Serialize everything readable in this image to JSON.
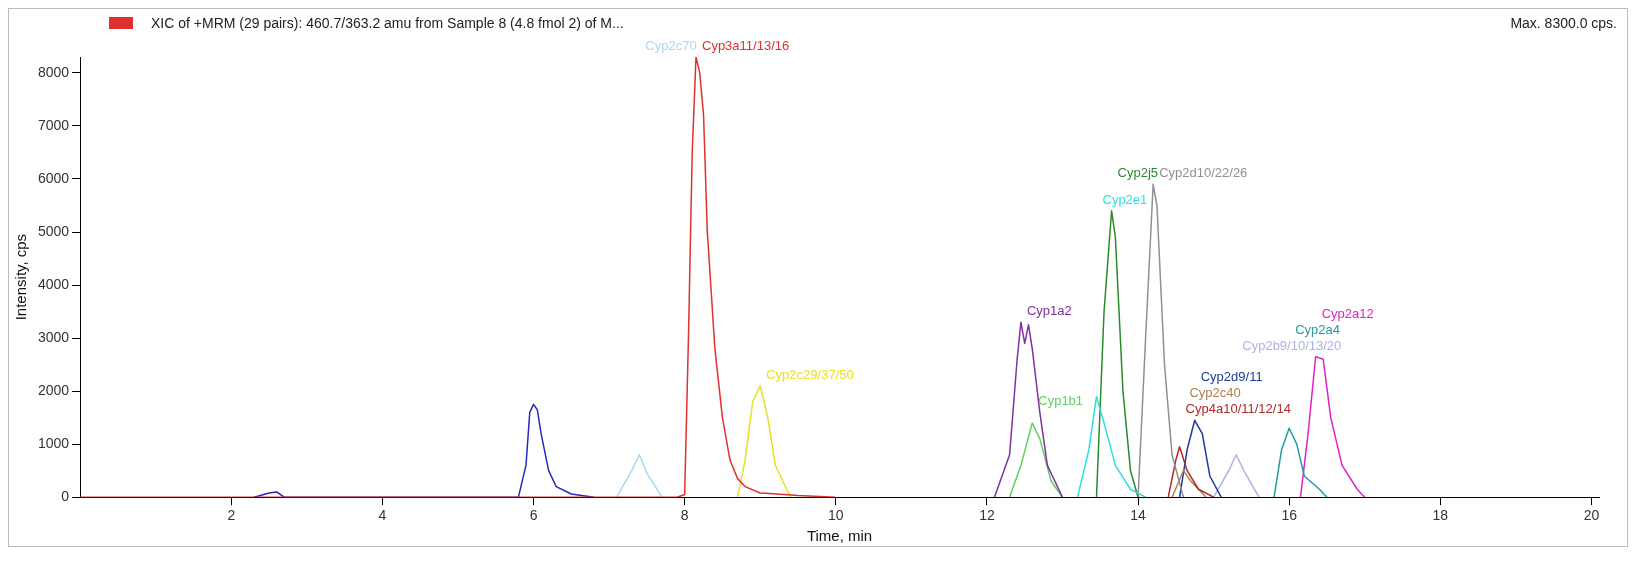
{
  "chart_data": {
    "type": "line",
    "title": "XIC of +MRM (29 pairs): 460.7/363.2 amu from Sample 8 (4.8 fmol 2) of M...",
    "annotations": [
      "Max. 8300.0 cps."
    ],
    "xlabel": "Time, min",
    "ylabel": "Intensity, cps",
    "xlim": [
      0,
      20.1
    ],
    "xticks": [
      2,
      4,
      6,
      8,
      10,
      12,
      14,
      16,
      18,
      20
    ],
    "ylim": [
      0,
      8300
    ],
    "yticks": [
      0,
      1000,
      2000,
      3000,
      4000,
      5000,
      6000,
      7000,
      8000
    ],
    "grid": false,
    "legend": false,
    "marker": "none",
    "line_style": "solid",
    "series": [
      {
        "name": "Cyp3a11/13/16",
        "color": "#e03030",
        "x": [
          0,
          7.9,
          8.0,
          8.05,
          8.1,
          8.15,
          8.2,
          8.25,
          8.3,
          8.4,
          8.5,
          8.6,
          8.7,
          8.8,
          9.0,
          9.5,
          10
        ],
        "values": [
          0,
          0,
          50,
          3000,
          6500,
          8300,
          8000,
          7200,
          5000,
          2800,
          1500,
          700,
          350,
          200,
          80,
          30,
          0
        ]
      },
      {
        "color": "#2828c0",
        "x": [
          2.3,
          2.5,
          2.6,
          2.7,
          5.8,
          5.9,
          5.95,
          6.0,
          6.05,
          6.1,
          6.2,
          6.3,
          6.5,
          6.8
        ],
        "values": [
          0,
          80,
          100,
          0,
          0,
          600,
          1600,
          1750,
          1650,
          1200,
          500,
          200,
          60,
          0
        ]
      },
      {
        "name": "Cyp2c70",
        "color": "#a8d8f0",
        "x": [
          7.1,
          7.3,
          7.4,
          7.5,
          7.7
        ],
        "values": [
          0,
          500,
          800,
          450,
          0
        ]
      },
      {
        "name": "Cyp2c29/37/50",
        "color": "#e8e020",
        "x": [
          8.7,
          8.8,
          8.9,
          9.0,
          9.1,
          9.2,
          9.4
        ],
        "values": [
          0,
          700,
          1800,
          2100,
          1500,
          600,
          0
        ]
      },
      {
        "name": "Cyp1a2",
        "color": "#8030a0",
        "x": [
          12.1,
          12.3,
          12.4,
          12.45,
          12.5,
          12.55,
          12.6,
          12.7,
          12.8,
          13.0
        ],
        "values": [
          0,
          800,
          2600,
          3300,
          2900,
          3250,
          2800,
          1600,
          600,
          0
        ]
      },
      {
        "name": "Cyp1b1",
        "color": "#60d060",
        "x": [
          12.3,
          12.45,
          12.6,
          12.7,
          12.85,
          13.0
        ],
        "values": [
          0,
          600,
          1400,
          1100,
          300,
          0
        ]
      },
      {
        "name": "Cyp2e1",
        "color": "#30e0e0",
        "x": [
          13.2,
          13.35,
          13.45,
          13.55,
          13.7,
          13.9,
          14.1
        ],
        "values": [
          0,
          900,
          1900,
          1400,
          600,
          150,
          0
        ]
      },
      {
        "name": "Cyp2j5",
        "color": "#2a8a2a",
        "x": [
          13.45,
          13.55,
          13.65,
          13.7,
          13.8,
          13.9,
          14.0
        ],
        "values": [
          0,
          3500,
          5400,
          4900,
          2000,
          500,
          0
        ]
      },
      {
        "name": "Cyp2d10/22/26",
        "color": "#909090",
        "x": [
          14.0,
          14.1,
          14.2,
          14.25,
          14.35,
          14.45,
          14.6
        ],
        "values": [
          0,
          3000,
          5900,
          5500,
          2500,
          800,
          0
        ]
      },
      {
        "name": "Cyp4a10/11/12/14",
        "color": "#b02828",
        "x": [
          14.4,
          14.5,
          14.55,
          14.65,
          14.8,
          15.0
        ],
        "values": [
          0,
          700,
          950,
          500,
          150,
          0
        ]
      },
      {
        "name": "Cyp2c40",
        "color": "#b08050",
        "x": [
          14.45,
          14.6,
          14.7,
          14.9
        ],
        "values": [
          0,
          500,
          300,
          0
        ]
      },
      {
        "name": "Cyp2d9/11",
        "color": "#1c3c9c",
        "x": [
          14.55,
          14.65,
          14.75,
          14.85,
          14.95,
          15.1
        ],
        "values": [
          0,
          900,
          1450,
          1200,
          400,
          0
        ]
      },
      {
        "name": "Cyp2b9/10/13/20",
        "color": "#b0b0e8",
        "x": [
          15.0,
          15.2,
          15.3,
          15.4,
          15.6
        ],
        "values": [
          0,
          500,
          800,
          500,
          0
        ]
      },
      {
        "name": "Cyp2a4",
        "color": "#209c9c",
        "x": [
          15.8,
          15.9,
          16.0,
          16.1,
          16.2,
          16.4,
          16.5
        ],
        "values": [
          0,
          900,
          1300,
          1000,
          400,
          150,
          0
        ]
      },
      {
        "name": "Cyp2a12",
        "color": "#e020c8",
        "x": [
          16.15,
          16.25,
          16.35,
          16.45,
          16.55,
          16.7,
          16.9,
          17.0
        ],
        "values": [
          0,
          1200,
          2650,
          2600,
          1500,
          600,
          150,
          0
        ]
      }
    ]
  }
}
